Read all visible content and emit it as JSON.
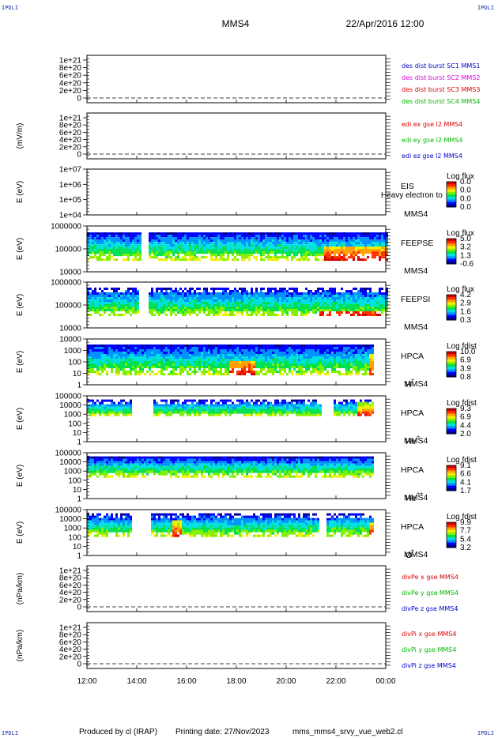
{
  "header": {
    "corner_tag": "IPDLI",
    "spacecraft": "MMS4",
    "date_time": "22/Apr/2016 12:00"
  },
  "footer": {
    "produced_by": "Produced by cl (IRAP)",
    "printing_date": "Printing date: 27/Nov/2023",
    "script_name": "mms_mms4_srvy_vue_web2.cl"
  },
  "colors": {
    "blue": "#0000cc",
    "magenta": "#dd00dd",
    "red": "#dd0000",
    "green": "#00bb00",
    "colormap": [
      "#00008c",
      "#0000ff",
      "#0090ff",
      "#00e0e0",
      "#00e050",
      "#80f000",
      "#f0f000",
      "#ffa000",
      "#ff3000",
      "#d00000"
    ]
  },
  "chart_data": {
    "type": "heatmap",
    "x_ticks": [
      "12:00",
      "14:00",
      "16:00",
      "18:00",
      "20:00",
      "22:00",
      "00:00"
    ],
    "panels": [
      {
        "id": "dist",
        "ylabel": "",
        "ytick_labels": [
          "1e+21",
          "8e+20",
          "6e+20",
          "4e+20",
          "2e+20",
          "0"
        ],
        "legend": [
          {
            "text": "des dist burst SC1 MMS1",
            "color": "blue"
          },
          {
            "text": "des dist burst SC2 MMS2",
            "color": "magenta"
          },
          {
            "text": "des dist burst SC3 MMS3",
            "color": "red"
          },
          {
            "text": "des dist burst SC4 MMS4",
            "color": "green"
          }
        ]
      },
      {
        "id": "edi",
        "ylabel": "(mV/m)",
        "ytick_labels": [
          "1e+21",
          "8e+20",
          "6e+20",
          "4e+20",
          "2e+20",
          "0"
        ],
        "legend": [
          {
            "text": "edi ex gse l2 MMS4",
            "color": "red"
          },
          {
            "text": "edi ey gse l2 MMS4",
            "color": "green"
          },
          {
            "text": "edi ez gse l2 MMS4",
            "color": "blue"
          }
        ]
      },
      {
        "id": "eis",
        "ylabel": "E (eV)",
        "ytick_labels": [
          "1e+07",
          "1e+06",
          "1e+05",
          "1e+04"
        ],
        "instrument": "EIS",
        "species": "Heavy electron to",
        "spacecraft": "MMS4",
        "cbar_title": "Log flux",
        "cbar_labels": [
          "0.0",
          "0.0",
          "0.0",
          "0.0"
        ]
      },
      {
        "id": "feepse",
        "ylabel": "E (eV)",
        "ytick_labels": [
          "1000000",
          "100000",
          "10000"
        ],
        "instrument": "FEEPSE",
        "spacecraft": "MMS4",
        "cbar_title": "Log flux",
        "cbar_labels": [
          "5.0",
          "3.2",
          "1.3",
          "-0.6"
        ]
      },
      {
        "id": "feepsi",
        "ylabel": "E (eV)",
        "ytick_labels": [
          "1000000",
          "100000",
          "10000"
        ],
        "instrument": "FEEPSI",
        "spacecraft": "MMS4",
        "cbar_title": "Log flux",
        "cbar_labels": [
          "4.2",
          "2.9",
          "1.6",
          "0.3"
        ]
      },
      {
        "id": "hpca_h",
        "ylabel": "E (eV)",
        "ytick_labels": [
          "10000",
          "1000",
          "100",
          "10",
          "1"
        ],
        "instrument": "HPCA",
        "spacecraft": "MMS4",
        "species": "H",
        "species_sup": "+",
        "cbar_title": "Log fdist",
        "cbar_labels": [
          "10.0",
          "6.9",
          "3.9",
          "0.8"
        ]
      },
      {
        "id": "hpca_he",
        "ylabel": "E (eV)",
        "ytick_labels": [
          "100000",
          "10000",
          "1000",
          "100",
          "10",
          "1"
        ],
        "instrument": "HPCA",
        "spacecraft": "MMS4",
        "species": "He",
        "species_sup": "+",
        "cbar_title": "Log fdist",
        "cbar_labels": [
          "9.3",
          "6.9",
          "4.4",
          "2.0"
        ]
      },
      {
        "id": "hpca_he2",
        "ylabel": "E (eV)",
        "ytick_labels": [
          "100000",
          "10000",
          "1000",
          "100",
          "10",
          "1"
        ],
        "instrument": "HPCA",
        "spacecraft": "MMS4",
        "species": "He",
        "species_sup": "++",
        "cbar_title": "Log fdist",
        "cbar_labels": [
          "9.1",
          "6.6",
          "4.1",
          "1.7"
        ]
      },
      {
        "id": "hpca_o",
        "ylabel": "E (eV)",
        "ytick_labels": [
          "100000",
          "10000",
          "1000",
          "100",
          "10",
          "1"
        ],
        "instrument": "HPCA",
        "spacecraft": "MMS4",
        "species": "O",
        "species_sup": "+",
        "cbar_title": "Log fdist",
        "cbar_labels": [
          "9.9",
          "7.7",
          "5.4",
          "3.2"
        ]
      },
      {
        "id": "divpe",
        "ylabel": "(nPa/km)",
        "ytick_labels": [
          "1e+21",
          "8e+20",
          "6e+20",
          "4e+20",
          "2e+20",
          "0"
        ],
        "legend": [
          {
            "text": "divPe x gse MMS4",
            "color": "red"
          },
          {
            "text": "divPe y gse MMS4",
            "color": "green"
          },
          {
            "text": "divPe z gse MMS4",
            "color": "blue"
          }
        ]
      },
      {
        "id": "divpi",
        "ylabel": "(nPa/km)",
        "ytick_labels": [
          "1e+21",
          "8e+20",
          "6e+20",
          "4e+20",
          "2e+20",
          "0"
        ],
        "legend": [
          {
            "text": "divPi x gse MMS4",
            "color": "red"
          },
          {
            "text": "divPi y gse MMS4",
            "color": "green"
          },
          {
            "text": "divPi z gse MMS4",
            "color": "blue"
          }
        ]
      }
    ]
  }
}
